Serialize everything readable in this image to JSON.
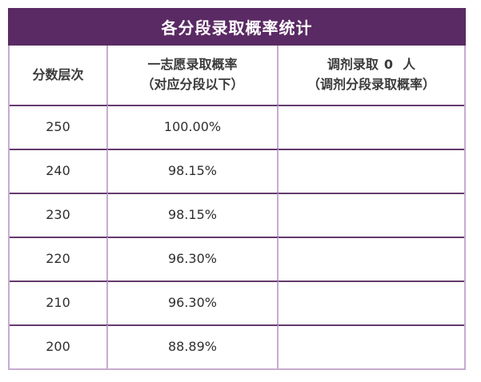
{
  "table": {
    "title": "各分段录取概率统计",
    "header": {
      "score_col": "分数层次",
      "first_choice_line1": "一志愿录取概率",
      "first_choice_line2": "（对应分段以下）",
      "adjust_prefix": "调剂录取",
      "adjust_count": "0",
      "adjust_suffix": "人",
      "adjust_line2": "（调剂分段录取概率）"
    },
    "rows": [
      {
        "score": "250",
        "first_choice": "100.00%",
        "adjustment": ""
      },
      {
        "score": "240",
        "first_choice": "98.15%",
        "adjustment": ""
      },
      {
        "score": "230",
        "first_choice": "98.15%",
        "adjustment": ""
      },
      {
        "score": "220",
        "first_choice": "96.30%",
        "adjustment": ""
      },
      {
        "score": "210",
        "first_choice": "96.30%",
        "adjustment": ""
      },
      {
        "score": "200",
        "first_choice": "88.89%",
        "adjustment": ""
      }
    ]
  },
  "colors": {
    "title_bg": "#5a2a64",
    "title_text": "#ffffff",
    "row_divider": "#653a6e",
    "column_divider": "#c6abd0",
    "body_text": "#2f2f2f"
  },
  "chart_data": {
    "type": "table",
    "title": "各分段录取概率统计",
    "columns": [
      "分数层次",
      "一志愿录取概率（对应分段以下）",
      "调剂录取 0 人（调剂分段录取概率）"
    ],
    "adjustment_admitted_count": 0,
    "rows": [
      [
        "250",
        "100.00%",
        ""
      ],
      [
        "240",
        "98.15%",
        ""
      ],
      [
        "230",
        "98.15%",
        ""
      ],
      [
        "220",
        "96.30%",
        ""
      ],
      [
        "210",
        "96.30%",
        ""
      ],
      [
        "200",
        "88.89%",
        ""
      ]
    ],
    "first_choice_probability_percent": {
      "250": 100.0,
      "240": 98.15,
      "230": 98.15,
      "220": 96.3,
      "210": 96.3,
      "200": 88.89
    }
  }
}
